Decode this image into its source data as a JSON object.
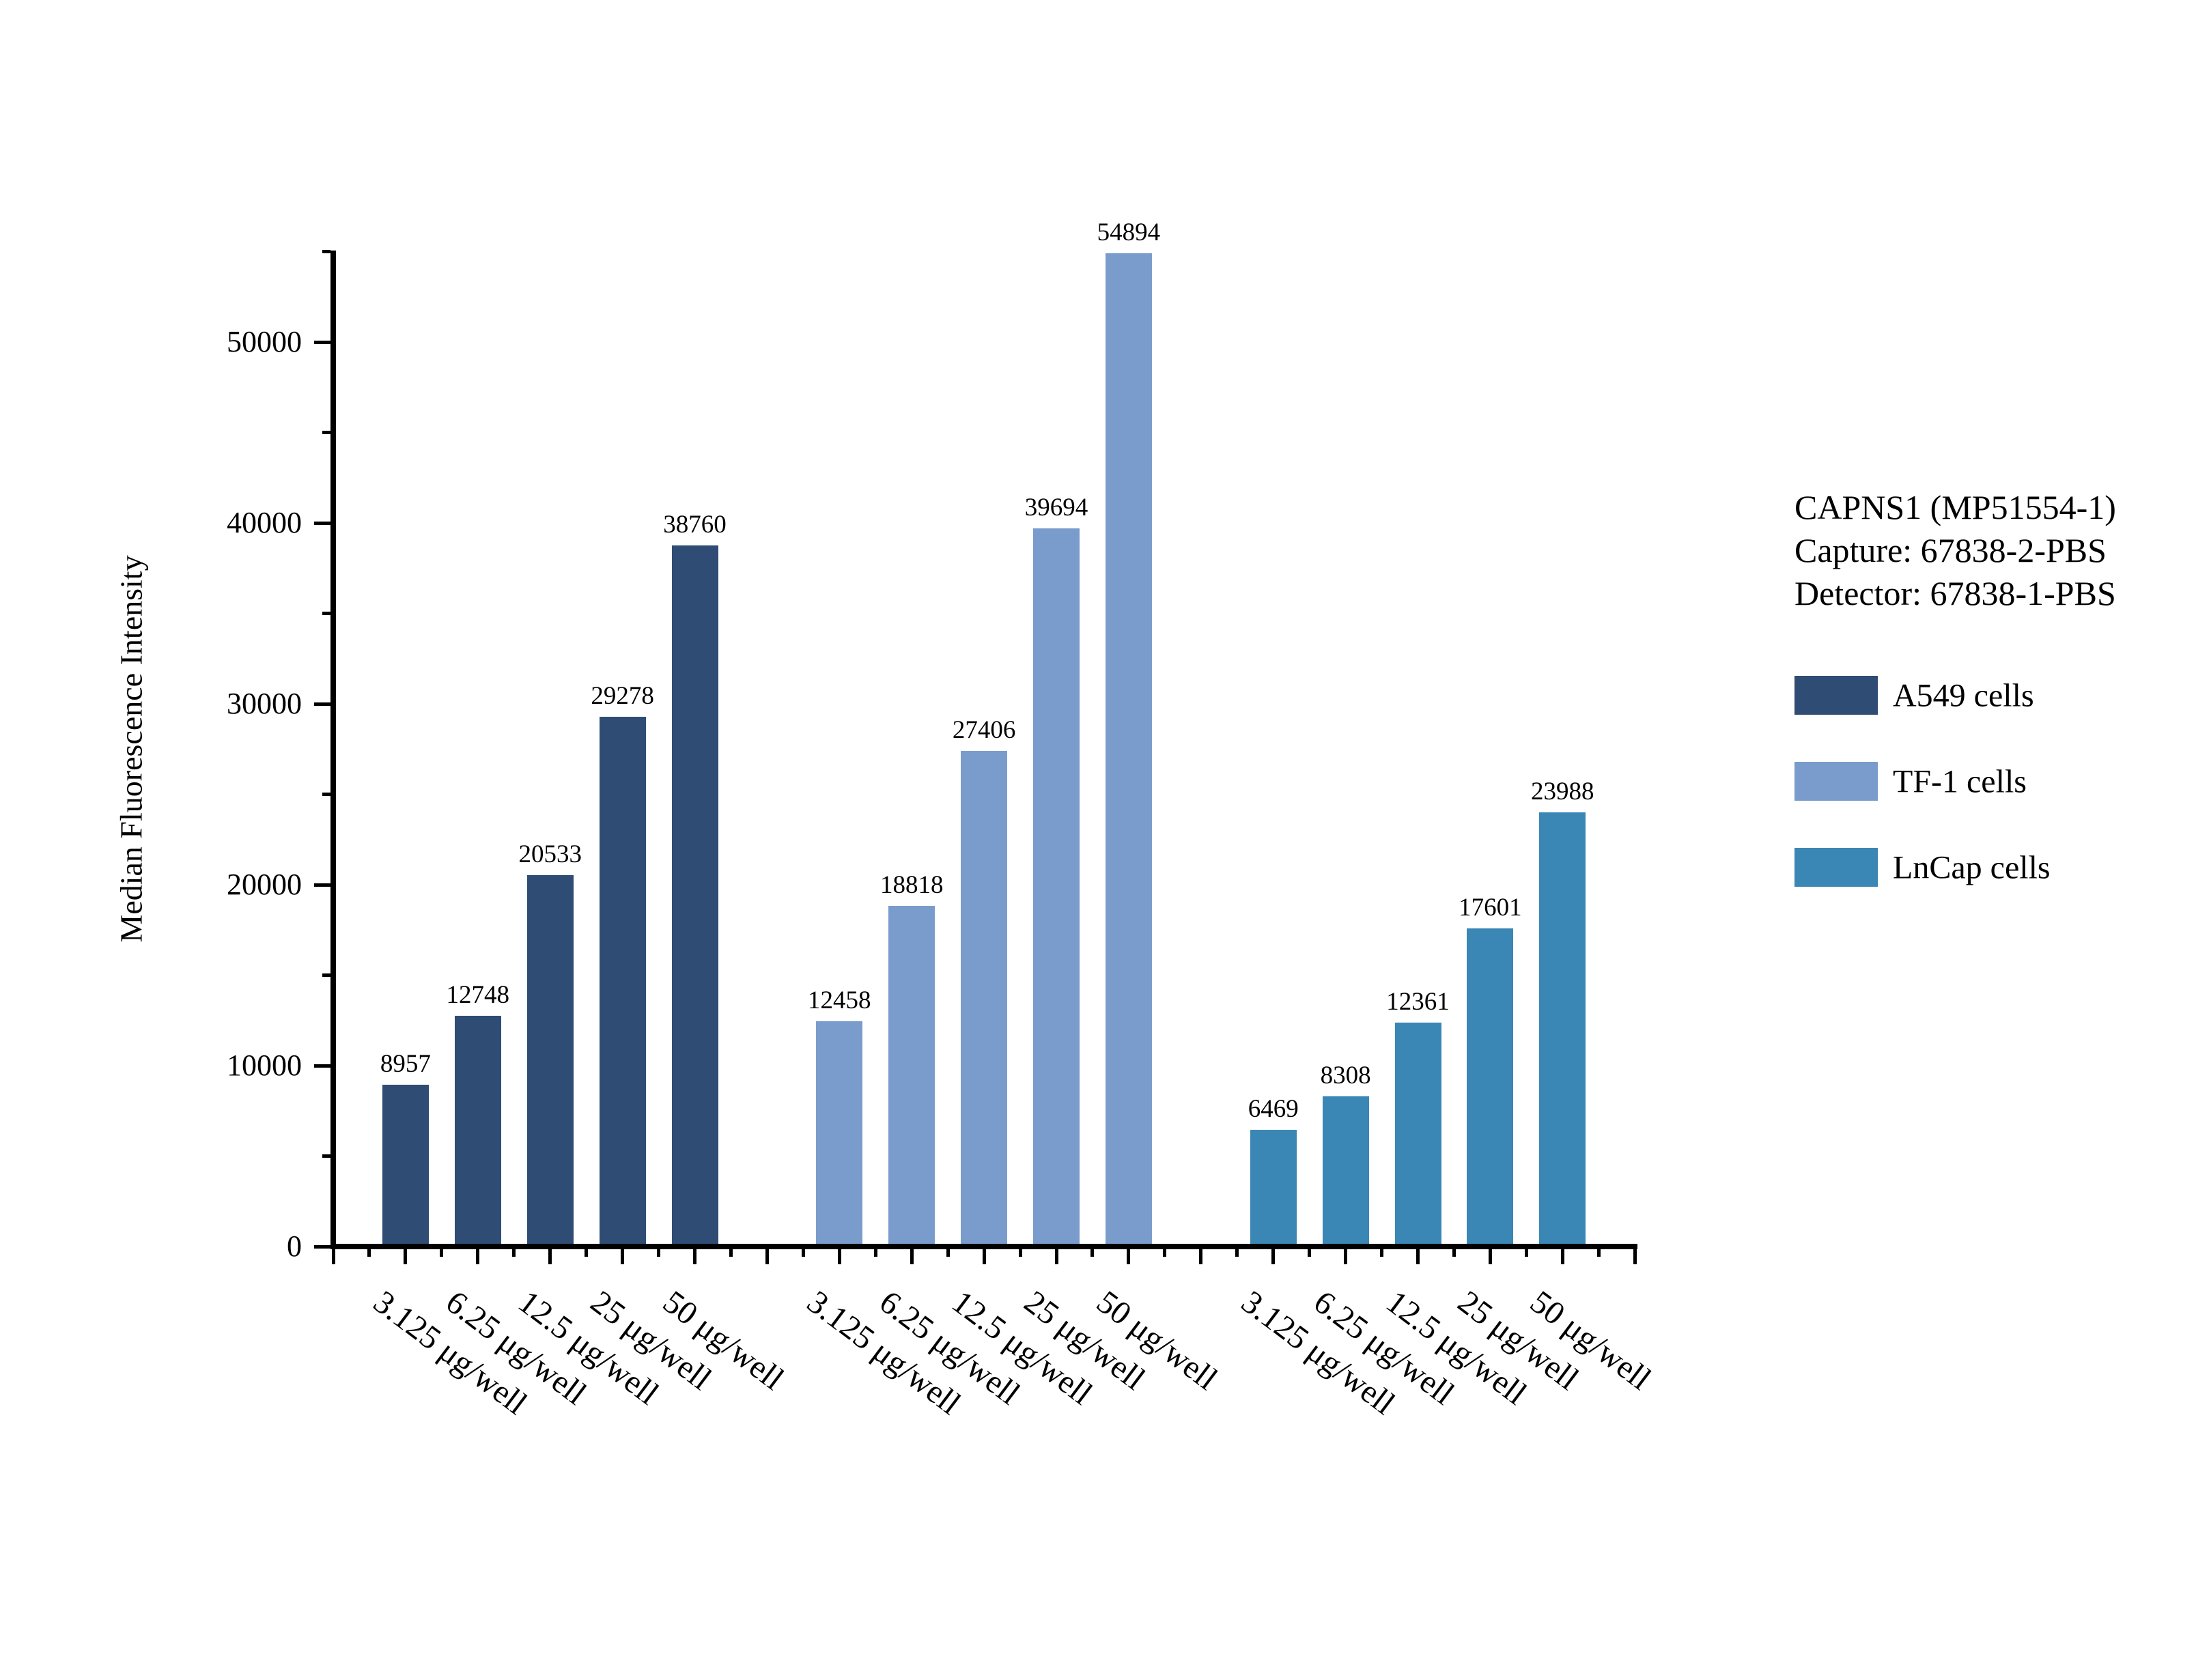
{
  "annotation": {
    "line1": "CAPNS1 (MP51554-1)",
    "line2": "Capture: 67838-2-PBS",
    "line3": "Detector: 67838-1-PBS"
  },
  "legend": [
    {
      "label": "A549 cells",
      "color": "#2e4c74"
    },
    {
      "label": "TF-1 cells",
      "color": "#7a9ccc"
    },
    {
      "label": "LnCap cells",
      "color": "#3a86b5"
    }
  ],
  "colors": {
    "axis": "#000000",
    "text": "#000000",
    "background": "#ffffff"
  },
  "chart_data": {
    "type": "bar",
    "title": "",
    "xlabel": "",
    "ylabel": "Median Fluorescence Intensity",
    "ylim": [
      0,
      55000
    ],
    "yticks": [
      0,
      10000,
      20000,
      30000,
      40000,
      50000
    ],
    "ytick_minor_interval": 5000,
    "grid": false,
    "legend_position": "right",
    "categories": [
      "3.125 μg/well",
      "6.25 μg/well",
      "12.5 μg/well",
      "25 μg/well",
      "50 μg/well"
    ],
    "series": [
      {
        "name": "A549 cells",
        "color": "#2e4c74",
        "values": [
          8957,
          12748,
          20533,
          29278,
          38760
        ]
      },
      {
        "name": "TF-1 cells",
        "color": "#7a9ccc",
        "values": [
          12458,
          18818,
          27406,
          39694,
          54894
        ]
      },
      {
        "name": "LnCap cells",
        "color": "#3a86b5",
        "values": [
          6469,
          8308,
          12361,
          17601,
          23988
        ]
      }
    ]
  }
}
